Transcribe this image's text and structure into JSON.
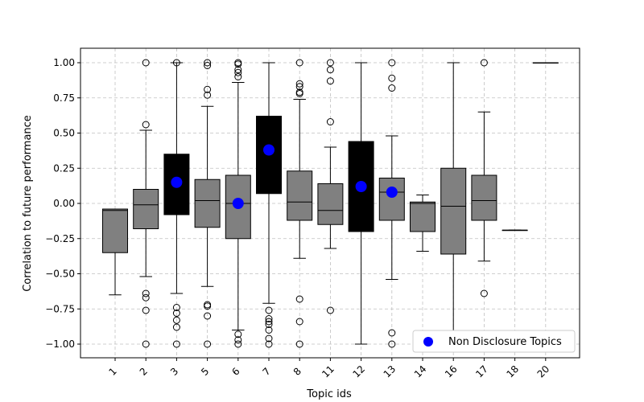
{
  "chart_data": {
    "type": "box",
    "title": "",
    "xlabel": "Topic ids",
    "ylabel": "Correlation to future performance",
    "ylim": [
      -1.1,
      1.1
    ],
    "yticks": [
      -1.0,
      -0.75,
      -0.5,
      -0.25,
      0.0,
      0.25,
      0.5,
      0.75,
      1.0
    ],
    "ytick_labels": [
      "−1.00",
      "−0.75",
      "−0.50",
      "−0.25",
      "0.00",
      "0.25",
      "0.50",
      "0.75",
      "1.00"
    ],
    "grid": true,
    "legend": {
      "placement": "lower-right",
      "label": "Non Disclosure Topics"
    },
    "colors": {
      "disclosure_box": "#808080",
      "non_disclosure_box": "#000000",
      "marker": "#0000ff",
      "grid": "#c0c0c0"
    },
    "categories": [
      "1",
      "2",
      "3",
      "5",
      "6",
      "7",
      "8",
      "11",
      "12",
      "13",
      "14",
      "16",
      "17",
      "18",
      "20"
    ],
    "boxes": [
      {
        "id": "1",
        "whislo": -0.65,
        "q1": -0.35,
        "med": -0.05,
        "q3": -0.04,
        "whishi": -0.04,
        "fliers": [],
        "non_disclosure": false
      },
      {
        "id": "2",
        "whislo": -0.52,
        "q1": -0.18,
        "med": -0.01,
        "q3": 0.1,
        "whishi": 0.52,
        "fliers": [
          1.0,
          0.56,
          -0.64,
          -0.67,
          -0.76,
          -1.0
        ],
        "non_disclosure": false
      },
      {
        "id": "3",
        "whislo": -0.64,
        "q1": -0.08,
        "med": 0.16,
        "q3": 0.35,
        "whishi": 1.0,
        "fliers": [
          1.0,
          -0.74,
          -0.78,
          -0.83,
          -0.88,
          -1.0
        ],
        "non_disclosure": true,
        "marker": 0.15
      },
      {
        "id": "5",
        "whislo": -0.59,
        "q1": -0.17,
        "med": 0.02,
        "q3": 0.17,
        "whishi": 0.69,
        "fliers": [
          1.0,
          0.98,
          0.81,
          0.77,
          -0.72,
          -0.73,
          -0.8,
          -1.0
        ],
        "non_disclosure": false
      },
      {
        "id": "6",
        "whislo": -0.9,
        "q1": -0.25,
        "med": 0.0,
        "q3": 0.2,
        "whishi": 0.86,
        "fliers": [
          1.0,
          0.99,
          0.95,
          0.93,
          0.9,
          -0.93,
          -0.97,
          -1.0
        ],
        "non_disclosure": false,
        "marker": 0.0
      },
      {
        "id": "7",
        "whislo": -0.71,
        "q1": 0.07,
        "med": 0.39,
        "q3": 0.62,
        "whishi": 1.0,
        "fliers": [
          -0.76,
          -0.82,
          -0.84,
          -0.86,
          -0.9,
          -0.96,
          -1.0
        ],
        "non_disclosure": true,
        "marker": 0.38
      },
      {
        "id": "8",
        "whislo": -0.39,
        "q1": -0.12,
        "med": 0.01,
        "q3": 0.23,
        "whishi": 0.74,
        "fliers": [
          1.0,
          0.85,
          0.83,
          0.79,
          0.78,
          -0.68,
          -0.84,
          -1.0
        ],
        "non_disclosure": false
      },
      {
        "id": "11",
        "whislo": -0.32,
        "q1": -0.15,
        "med": -0.05,
        "q3": 0.14,
        "whishi": 0.4,
        "fliers": [
          1.0,
          0.95,
          0.87,
          0.58,
          -0.76
        ],
        "non_disclosure": false
      },
      {
        "id": "12",
        "whislo": -1.0,
        "q1": -0.2,
        "med": 0.12,
        "q3": 0.44,
        "whishi": 1.0,
        "fliers": [],
        "non_disclosure": true,
        "marker": 0.12
      },
      {
        "id": "13",
        "whislo": -0.54,
        "q1": -0.12,
        "med": 0.08,
        "q3": 0.18,
        "whishi": 0.48,
        "fliers": [
          1.0,
          0.89,
          0.82,
          -0.92,
          -1.0
        ],
        "non_disclosure": false,
        "marker": 0.08
      },
      {
        "id": "14",
        "whislo": -0.34,
        "q1": -0.2,
        "med": 0.0,
        "q3": 0.01,
        "whishi": 0.06,
        "fliers": [],
        "non_disclosure": false
      },
      {
        "id": "16",
        "whislo": -1.0,
        "q1": -0.36,
        "med": -0.02,
        "q3": 0.25,
        "whishi": 1.0,
        "fliers": [],
        "non_disclosure": false
      },
      {
        "id": "17",
        "whislo": -0.41,
        "q1": -0.12,
        "med": 0.02,
        "q3": 0.2,
        "whishi": 0.65,
        "fliers": [
          1.0,
          -0.64
        ],
        "non_disclosure": false
      },
      {
        "id": "18",
        "whislo": -0.19,
        "q1": -0.19,
        "med": -0.19,
        "q3": -0.19,
        "whishi": -0.19,
        "fliers": [],
        "non_disclosure": false
      },
      {
        "id": "20",
        "whislo": 1.0,
        "q1": 1.0,
        "med": 1.0,
        "q3": 1.0,
        "whishi": 1.0,
        "fliers": [],
        "non_disclosure": false
      }
    ]
  }
}
